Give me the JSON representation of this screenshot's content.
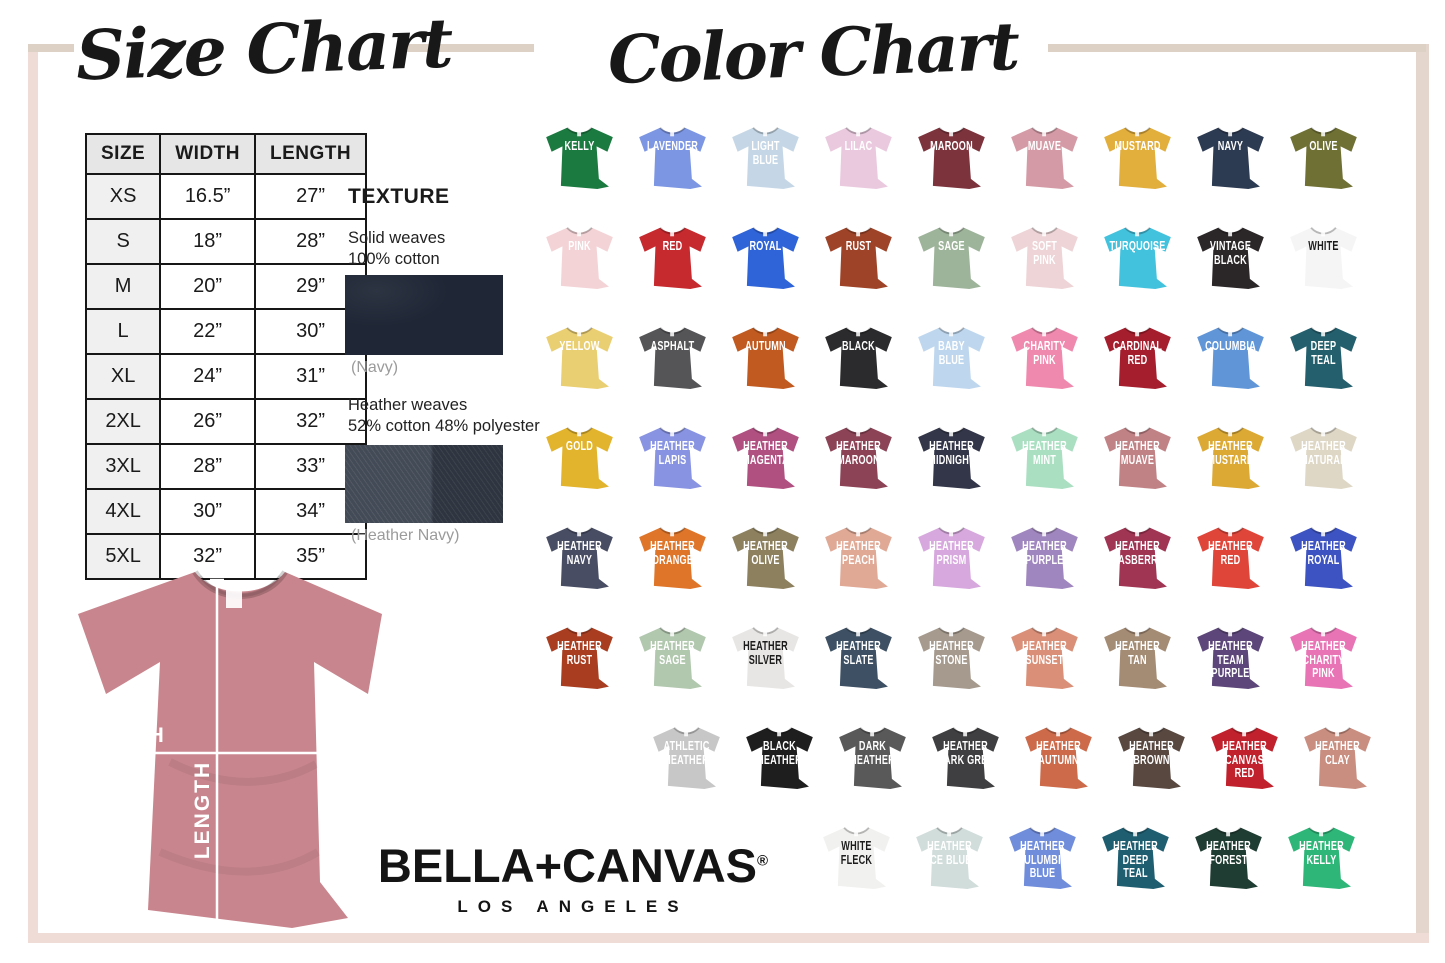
{
  "titles": {
    "size_chart": "Size Chart",
    "color_chart": "Color Chart"
  },
  "size_table": {
    "headers": [
      "SIZE",
      "WIDTH",
      "LENGTH"
    ],
    "rows": [
      [
        "XS",
        "16.5”",
        "27”"
      ],
      [
        "S",
        "18”",
        "28”"
      ],
      [
        "M",
        "20”",
        "29”"
      ],
      [
        "L",
        "22”",
        "30”"
      ],
      [
        "XL",
        "24”",
        "31”"
      ],
      [
        "2XL",
        "26”",
        "32”"
      ],
      [
        "3XL",
        "28”",
        "33”"
      ],
      [
        "4XL",
        "30”",
        "34”"
      ],
      [
        "5XL",
        "32”",
        "35”"
      ]
    ]
  },
  "texture": {
    "title": "TEXTURE",
    "solid_line1": "Solid weaves",
    "solid_line2": "100% cotton",
    "solid_caption": "(Navy)",
    "solid_swatch_color": "#1f2736",
    "heather_line1": "Heather weaves",
    "heather_line2": "52% cotton 48% polyester",
    "heather_caption": "(Heather Navy)",
    "heather_swatch_color": "#39414e"
  },
  "measurement": {
    "width_label": "WIDTH",
    "length_label": "LENGTH",
    "shirt_color": "#c8858d"
  },
  "brand": {
    "name": "BELLA+CANVAS",
    "registered": "®",
    "city": "LOS ANGELES"
  },
  "color_chart": {
    "rows": [
      [
        {
          "name": "KELLY",
          "color": "#1b7a40"
        },
        {
          "name": "LAVENDER",
          "color": "#7c96e3"
        },
        {
          "name": "LIGHT\nBLUE",
          "color": "#c5d7e6"
        },
        {
          "name": "LILAC",
          "color": "#eac9df"
        },
        {
          "name": "MAROON",
          "color": "#7c333c"
        },
        {
          "name": "MUAVE",
          "color": "#d49ba6"
        },
        {
          "name": "MUSTARD",
          "color": "#e2ae3c"
        },
        {
          "name": "NAVY",
          "color": "#2c3a52"
        },
        {
          "name": "OLIVE",
          "color": "#6f7034"
        }
      ],
      [
        {
          "name": "PINK",
          "color": "#f3d3d6"
        },
        {
          "name": "RED",
          "color": "#c6292e"
        },
        {
          "name": "ROYAL",
          "color": "#2f63d8"
        },
        {
          "name": "RUST",
          "color": "#9e4327"
        },
        {
          "name": "SAGE",
          "color": "#9eb49a"
        },
        {
          "name": "SOFT\nPINK",
          "color": "#eed4d6"
        },
        {
          "name": "TURQUOISE",
          "color": "#43c2de"
        },
        {
          "name": "VINTAGE\nBLACK",
          "color": "#2b2627"
        },
        {
          "name": "WHITE",
          "color": "#f5f5f5",
          "text": "#1c1c1c"
        }
      ],
      [
        {
          "name": "YELLOW",
          "color": "#eace72"
        },
        {
          "name": "ASPHALT",
          "color": "#555558"
        },
        {
          "name": "AUTUMN",
          "color": "#c05a20"
        },
        {
          "name": "BLACK",
          "color": "#2b2b2d"
        },
        {
          "name": "BABY\nBLUE",
          "color": "#bed7ee"
        },
        {
          "name": "CHARITY\nPINK",
          "color": "#f089ae"
        },
        {
          "name": "CARDINAL\nRED",
          "color": "#a41e2d"
        },
        {
          "name": "COLUMBIA",
          "color": "#6096d8"
        },
        {
          "name": "DEEP\nTEAL",
          "color": "#235f6d"
        }
      ],
      [
        {
          "name": "GOLD",
          "color": "#e2b32c"
        },
        {
          "name": "HEATHER\nLAPIS",
          "color": "#8893e2"
        },
        {
          "name": "HEATHER\nMAGENTA",
          "color": "#b05080"
        },
        {
          "name": "HEATHER\nMAROON",
          "color": "#8c4356"
        },
        {
          "name": "HEATHER\nMIDNIGHT",
          "color": "#333649"
        },
        {
          "name": "HEATHER\nMINT",
          "color": "#abdfc2"
        },
        {
          "name": "HEATHER\nMUAVE",
          "color": "#c18286"
        },
        {
          "name": "HEATHER\nMUSTARD",
          "color": "#dba934"
        },
        {
          "name": "HEATHER\nNATURAL",
          "color": "#ded7c5"
        }
      ],
      [
        {
          "name": "HEATHER\nNAVY",
          "color": "#484d64"
        },
        {
          "name": "HEATHER\nORANGE",
          "color": "#df7529"
        },
        {
          "name": "HEATHER\nOLIVE",
          "color": "#8c805e"
        },
        {
          "name": "HEATHER\nPEACH",
          "color": "#e0a996"
        },
        {
          "name": "HEATHER\nPRISM",
          "color": "#d6a8dd"
        },
        {
          "name": "HEATHER\nPURPLE",
          "color": "#a086be"
        },
        {
          "name": "HEATHER\nRASBERRY",
          "color": "#a03453"
        },
        {
          "name": "HEATHER\nRED",
          "color": "#e04539"
        },
        {
          "name": "HEATHER\nROYAL",
          "color": "#3d53c1"
        }
      ],
      [
        {
          "name": "HEATHER\nRUST",
          "color": "#a83d20"
        },
        {
          "name": "HEATHER\nSAGE",
          "color": "#b1c7ae"
        },
        {
          "name": "HEATHER\nSILVER",
          "color": "#e8e6e4",
          "text": "#1c1c1c"
        },
        {
          "name": "HEATHER\nSLATE",
          "color": "#3d5064"
        },
        {
          "name": "HEATHER\nSTONE",
          "color": "#a59a8d"
        },
        {
          "name": "HEATHER\nSUNSET",
          "color": "#da9078"
        },
        {
          "name": "HEATHER\nTAN",
          "color": "#a48b74"
        },
        {
          "name": "HEATHER\nTEAM\nPURPLE",
          "color": "#5d477a"
        },
        {
          "name": "HEATHER\nCHARITY\nPINK",
          "color": "#e874b6"
        }
      ],
      [
        {
          "name": "ATHLETIC\nHEATHER",
          "color": "#c7c7c7"
        },
        {
          "name": "BLACK\nHEATHER",
          "color": "#1e1e1e"
        },
        {
          "name": "DARK\nHEATHER",
          "color": "#595959"
        },
        {
          "name": "HEATHER\nDARK GREY",
          "color": "#3f3e40"
        },
        {
          "name": "HEATHER\nAUTUMN",
          "color": "#cc6a4a"
        },
        {
          "name": "HEATHER\nBROWN",
          "color": "#584840"
        },
        {
          "name": "HEATHER\nCANVAS\nRED",
          "color": "#c1212c"
        },
        {
          "name": "HEATHER\nCLAY",
          "color": "#ca8e81"
        }
      ],
      [
        {
          "name": "WHITE\nFLECK",
          "color": "#f1f1ef",
          "text": "#1c1c1c"
        },
        {
          "name": "HEATHER\nICE BLUE",
          "color": "#d0dddb"
        },
        {
          "name": "HEATHER\nCULUMBIA\nBLUE",
          "color": "#708ddc"
        },
        {
          "name": "HEATHER\nDEEP\nTEAL",
          "color": "#1f5e71"
        },
        {
          "name": "HEATHER\nFOREST",
          "color": "#1f3d32"
        },
        {
          "name": "HEATHER\nKELLY",
          "color": "#2eb678"
        }
      ]
    ]
  }
}
